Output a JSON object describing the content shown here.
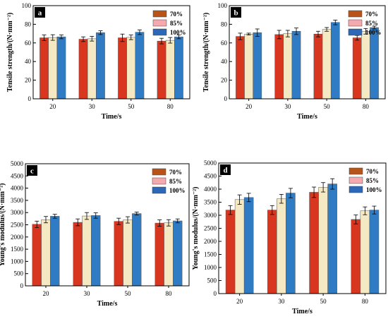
{
  "colors": {
    "s70": "#d8361f",
    "s85": "#f5e9c4",
    "s100": "#2f7cc4",
    "tag_bg": "#000000",
    "l70": "#b8541a",
    "l85": "#f3a9ad",
    "l100": "#2d68b8"
  },
  "legend": [
    "70%",
    "85%",
    "100%"
  ],
  "chart_data": [
    {
      "panel": "a",
      "type": "bar",
      "categories": [
        "20",
        "30",
        "50",
        "80"
      ],
      "xlabel": "Time/s",
      "ylabel": "Tensile strength/(N·mm⁻²)",
      "ylim": [
        0,
        100
      ],
      "yticks": [
        0,
        20,
        40,
        60,
        80,
        100
      ],
      "series": [
        {
          "name": "70%",
          "values": [
            65.5,
            64.0,
            65.5,
            62.0
          ],
          "errors": [
            3.0,
            2.5,
            4.0,
            3.0
          ]
        },
        {
          "name": "85%",
          "values": [
            65.8,
            64.5,
            66.0,
            62.8
          ],
          "errors": [
            3.0,
            2.5,
            2.5,
            3.0
          ]
        },
        {
          "name": "100%",
          "values": [
            66.5,
            71.0,
            71.5,
            66.5
          ],
          "errors": [
            2.0,
            2.0,
            2.5,
            2.0
          ]
        }
      ]
    },
    {
      "panel": "b",
      "type": "bar",
      "categories": [
        "20",
        "30",
        "50",
        "80"
      ],
      "xlabel": "Time/s",
      "ylabel": "Tensile strength/(N·mm⁻²)",
      "ylim": [
        0,
        100
      ],
      "yticks": [
        0,
        20,
        40,
        60,
        80,
        100
      ],
      "series": [
        {
          "name": "70%",
          "values": [
            67.0,
            69.0,
            69.5,
            65.5
          ],
          "errors": [
            3.5,
            4.5,
            3.0,
            2.5
          ]
        },
        {
          "name": "85%",
          "values": [
            69.5,
            70.0,
            74.5,
            72.5
          ],
          "errors": [
            1.0,
            3.5,
            2.0,
            3.0
          ]
        },
        {
          "name": "100%",
          "values": [
            71.0,
            72.5,
            82.0,
            76.5
          ],
          "errors": [
            4.0,
            3.5,
            2.5,
            1.5
          ]
        }
      ]
    },
    {
      "panel": "c",
      "type": "bar",
      "categories": [
        "20",
        "30",
        "50",
        "80"
      ],
      "xlabel": "Time/s",
      "ylabel": "Young's modulus/(N·mm⁻²)",
      "ylim": [
        0,
        5000
      ],
      "yticks": [
        0,
        500,
        1000,
        1500,
        2000,
        2500,
        3000,
        3500,
        4000,
        4500,
        5000
      ],
      "series": [
        {
          "name": "70%",
          "values": [
            2520,
            2600,
            2640,
            2570
          ],
          "errors": [
            130,
            140,
            130,
            130
          ]
        },
        {
          "name": "85%",
          "values": [
            2710,
            2860,
            2700,
            2580
          ],
          "errors": [
            130,
            140,
            130,
            130
          ]
        },
        {
          "name": "100%",
          "values": [
            2850,
            2880,
            2960,
            2660
          ],
          "errors": [
            80,
            110,
            60,
            80
          ]
        }
      ]
    },
    {
      "panel": "d",
      "type": "bar",
      "categories": [
        "20",
        "30",
        "50",
        "80"
      ],
      "xlabel": "Time/s",
      "ylabel": "Young's modulus/(N·mm⁻²)",
      "ylim": [
        0,
        5000
      ],
      "yticks": [
        0,
        500,
        1000,
        1500,
        2000,
        2500,
        3000,
        3500,
        4000,
        4500,
        5000
      ],
      "series": [
        {
          "name": "70%",
          "values": [
            3200,
            3200,
            3880,
            2840
          ],
          "errors": [
            170,
            170,
            200,
            170
          ]
        },
        {
          "name": "85%",
          "values": [
            3600,
            3630,
            4070,
            3170
          ],
          "errors": [
            180,
            170,
            180,
            150
          ]
        },
        {
          "name": "100%",
          "values": [
            3680,
            3850,
            4200,
            3200
          ],
          "errors": [
            160,
            180,
            200,
            150
          ]
        }
      ]
    }
  ]
}
